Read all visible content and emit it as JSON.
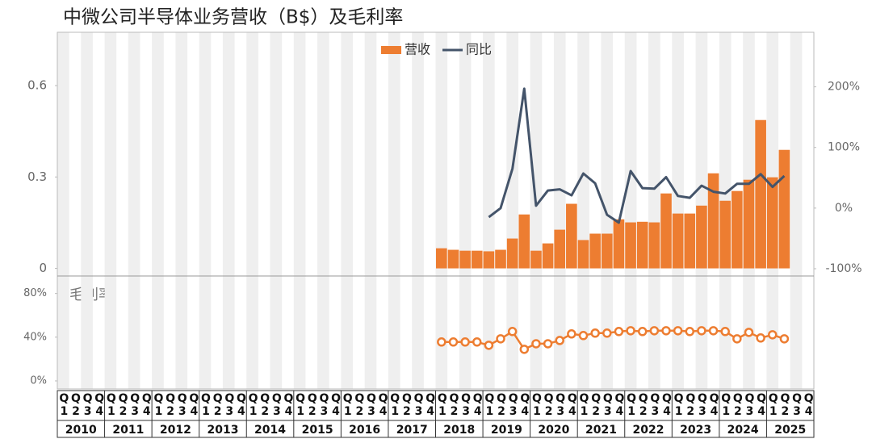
{
  "chart_data": [
    {
      "type": "bar",
      "title": "中微公司半导体业务营收（B$）及毛利率",
      "series": [
        {
          "name": "营收",
          "color": "#ed7d31",
          "values": [
            null,
            null,
            null,
            null,
            null,
            null,
            null,
            null,
            null,
            null,
            null,
            null,
            null,
            null,
            null,
            null,
            null,
            null,
            null,
            null,
            null,
            null,
            null,
            null,
            null,
            null,
            null,
            null,
            null,
            null,
            null,
            null,
            0.066,
            0.061,
            0.058,
            0.058,
            0.056,
            0.061,
            0.098,
            0.177,
            0.058,
            0.082,
            0.127,
            0.212,
            0.093,
            0.114,
            0.114,
            0.161,
            0.151,
            0.153,
            0.151,
            0.246,
            0.18,
            0.18,
            0.206,
            0.312,
            0.222,
            0.254,
            0.291,
            0.487,
            0.299,
            0.389,
            null,
            null
          ]
        },
        {
          "name": "同比",
          "color": "#44546a",
          "type": "line",
          "axis": "y2",
          "values": [
            null,
            null,
            null,
            null,
            null,
            null,
            null,
            null,
            null,
            null,
            null,
            null,
            null,
            null,
            null,
            null,
            null,
            null,
            null,
            null,
            null,
            null,
            null,
            null,
            null,
            null,
            null,
            null,
            null,
            null,
            null,
            null,
            null,
            null,
            null,
            null,
            -15,
            0,
            65,
            197,
            4,
            29,
            31,
            21,
            57,
            41,
            -11,
            -24,
            61,
            33,
            32,
            51,
            20,
            17,
            37,
            27,
            24,
            40,
            40,
            56,
            35,
            53,
            null,
            null
          ]
        }
      ],
      "ylim": [
        -0.025,
        0.775
      ],
      "yticks": [
        0,
        0.3,
        0.6
      ],
      "y2lim": [
        -112,
        290
      ],
      "y2ticks": [
        {
          "value": -100,
          "label": "-100%"
        },
        {
          "value": 0,
          "label": "0%"
        },
        {
          "value": 100,
          "label": "100%"
        },
        {
          "value": 200,
          "label": "200%"
        }
      ],
      "legend": "top"
    },
    {
      "type": "line",
      "label": "毛利率",
      "categories": [
        "Q1",
        "Q2",
        "Q3",
        "Q4",
        "Q1",
        "Q2",
        "Q3",
        "Q4",
        "Q1",
        "Q2",
        "Q3",
        "Q4",
        "Q1",
        "Q2",
        "Q3",
        "Q4",
        "Q1",
        "Q2",
        "Q3",
        "Q4",
        "Q1",
        "Q2",
        "Q3",
        "Q4",
        "Q1",
        "Q2",
        "Q3",
        "Q4",
        "Q1",
        "Q2",
        "Q3",
        "Q4",
        "Q1",
        "Q2",
        "Q3",
        "Q4",
        "Q1",
        "Q2",
        "Q3",
        "Q4",
        "Q1",
        "Q2",
        "Q3",
        "Q4",
        "Q1",
        "Q2",
        "Q3",
        "Q4",
        "Q1",
        "Q2",
        "Q3",
        "Q4",
        "Q1",
        "Q2",
        "Q3",
        "Q4",
        "Q1",
        "Q2",
        "Q3",
        "Q4",
        "Q1",
        "Q2",
        "Q3",
        "Q4"
      ],
      "years": [
        "2010",
        "2011",
        "2012",
        "2013",
        "2014",
        "2015",
        "2016",
        "2017",
        "2018",
        "2019",
        "2020",
        "2021",
        "2022",
        "2023",
        "2024",
        "2025"
      ],
      "series": [
        {
          "color": "#ed7d31",
          "values": [
            null,
            null,
            null,
            null,
            null,
            null,
            null,
            null,
            null,
            null,
            null,
            null,
            null,
            null,
            null,
            null,
            null,
            null,
            null,
            null,
            null,
            null,
            null,
            null,
            null,
            null,
            null,
            null,
            null,
            null,
            null,
            null,
            35.6,
            35.6,
            35.6,
            35.6,
            32.6,
            38.5,
            45.2,
            28.9,
            34,
            34,
            37,
            43,
            41.5,
            43.7,
            43.7,
            45.2,
            45.9,
            45.2,
            45.9,
            45.9,
            45.9,
            45.2,
            45.9,
            45.9,
            45.2,
            38.5,
            44.4,
            39.3,
            42.2,
            38.5,
            null,
            null
          ]
        }
      ],
      "ylim": [
        -7.4,
        96
      ],
      "yticks": [
        {
          "value": 0,
          "label": "0%"
        },
        {
          "value": 40,
          "label": "40%"
        },
        {
          "value": 80,
          "label": "80%"
        }
      ]
    }
  ]
}
